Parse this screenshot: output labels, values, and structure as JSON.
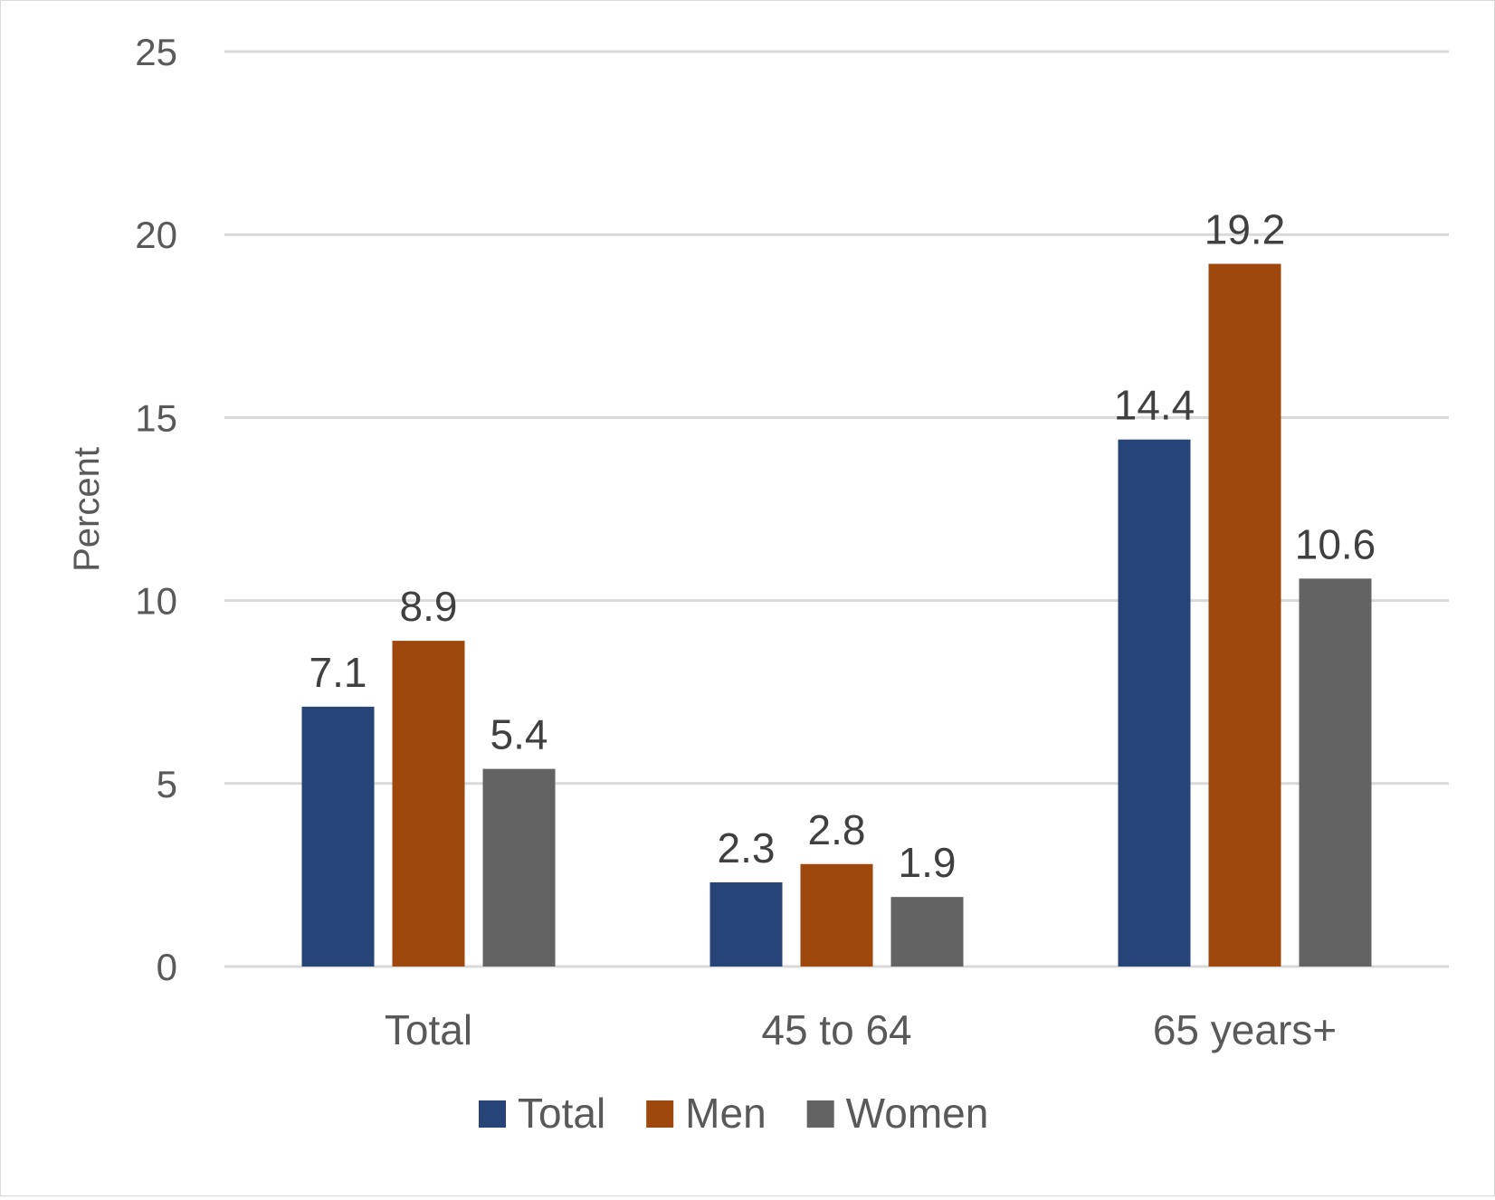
{
  "chart_data": {
    "type": "bar",
    "title": "",
    "xlabel": "",
    "ylabel": "Percent",
    "ylim": [
      0,
      25
    ],
    "yticks": [
      0,
      5,
      10,
      15,
      20,
      25
    ],
    "grid": true,
    "legend_position": "bottom",
    "categories": [
      "Total",
      "45 to 64",
      "65 years+"
    ],
    "series": [
      {
        "name": "Total",
        "color": "#264478",
        "values": [
          7.1,
          2.3,
          14.4
        ],
        "labels": [
          "7.1",
          "2.3",
          "14.4"
        ]
      },
      {
        "name": "Men",
        "color": "#9E480E",
        "values": [
          8.9,
          2.8,
          19.2
        ],
        "labels": [
          "8.9",
          "2.8",
          "19.2"
        ]
      },
      {
        "name": "Women",
        "color": "#636363",
        "values": [
          5.4,
          1.9,
          10.6
        ],
        "labels": [
          "5.4",
          "1.9",
          "10.6"
        ]
      }
    ]
  }
}
